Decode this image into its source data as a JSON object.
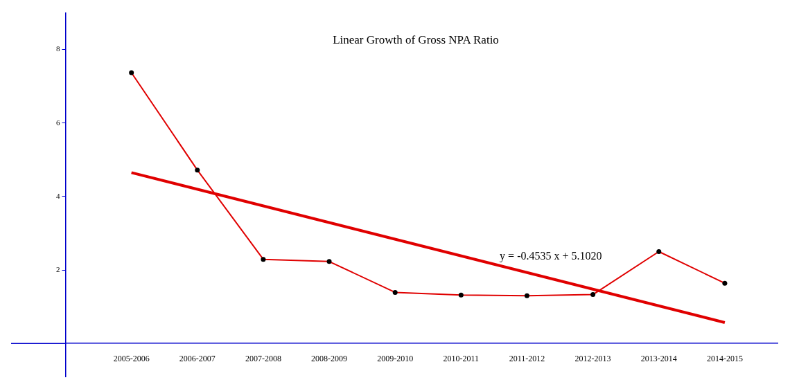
{
  "chart_data": {
    "type": "line",
    "title": "Linear Growth of Gross NPA Ratio",
    "categories": [
      "2005-2006",
      "2006-2007",
      "2007-2008",
      "2008-2009",
      "2009-2010",
      "2010-2011",
      "2011-2012",
      "2012-2013",
      "2013-2014",
      "2014-2015"
    ],
    "series": [
      {
        "color": "#e00000",
        "values": [
          7.37,
          4.72,
          2.29,
          2.23,
          1.39,
          1.32,
          1.3,
          1.33,
          2.5,
          1.64
        ],
        "marker": "circle"
      },
      {
        "type": "line",
        "color": "#e00000",
        "x": [
          "2005-2006",
          "2014-2015"
        ],
        "values": [
          4.65,
          0.57
        ],
        "marker": "none"
      }
    ],
    "ylim": [
      -0.9,
      9
    ],
    "yticks": [
      2,
      4,
      6,
      8
    ],
    "annotations": [
      "y = -0.4535 x + 5.1020"
    ],
    "grid": false,
    "legend": false
  }
}
